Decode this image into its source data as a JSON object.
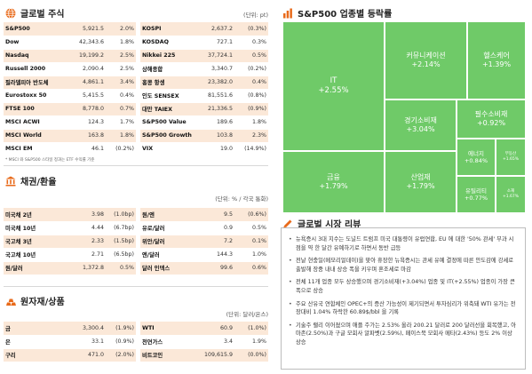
{
  "global_stocks": {
    "title": "글로벌 주식",
    "unit": "(단위: pt)",
    "rows": [
      {
        "l_name": "S&P500",
        "l_val": "5,921.5",
        "l_chg": "2.0%",
        "r_name": "KOSPI",
        "r_val": "2,637.2",
        "r_chg": "(0.3%)"
      },
      {
        "l_name": "Dow",
        "l_val": "42,343.6",
        "l_chg": "1.8%",
        "r_name": "KOSDAQ",
        "r_val": "727.1",
        "r_chg": "0.3%"
      },
      {
        "l_name": "Nasdaq",
        "l_val": "19,199.2",
        "l_chg": "2.5%",
        "r_name": "Nikkei 225",
        "r_val": "37,724.1",
        "r_chg": "0.5%"
      },
      {
        "l_name": "Russell 2000",
        "l_val": "2,090.4",
        "l_chg": "2.5%",
        "r_name": "상해종합",
        "r_val": "3,340.7",
        "r_chg": "(0.2%)"
      },
      {
        "l_name": "필라델피아 반도체",
        "l_val": "4,861.1",
        "l_chg": "3.4%",
        "r_name": "홍콩 항셍",
        "r_val": "23,382.0",
        "r_chg": "0.4%"
      },
      {
        "l_name": "Eurostoxx 50",
        "l_val": "5,415.5",
        "l_chg": "0.4%",
        "r_name": "인도 SENSEX",
        "r_val": "81,551.6",
        "r_chg": "(0.8%)"
      },
      {
        "l_name": "FTSE 100",
        "l_val": "8,778.0",
        "l_chg": "0.7%",
        "r_name": "대만 TAIEX",
        "r_val": "21,336.5",
        "r_chg": "(0.9%)"
      },
      {
        "l_name": "MSCI ACWI",
        "l_val": "124.3",
        "l_chg": "1.7%",
        "r_name": "S&P500 Value",
        "r_val": "189.6",
        "r_chg": "1.8%"
      },
      {
        "l_name": "MSCI World",
        "l_val": "163.8",
        "l_chg": "1.8%",
        "r_name": "S&P500 Growth",
        "r_val": "103.8",
        "r_chg": "2.3%"
      },
      {
        "l_name": "MSCI EM",
        "l_val": "46.1",
        "l_chg": "(0.2%)",
        "r_name": "VIX",
        "r_val": "19.0",
        "r_chg": "(14.9%)"
      }
    ],
    "note": "* MSCI 와 S&P500 스타일 정과는 ETF 수익률 기준"
  },
  "bonds_fx": {
    "title": "채권/환율",
    "unit": "(단위: % / 각국 통화)",
    "rows": [
      {
        "l_name": "미국채 2년",
        "l_val": "3.98",
        "l_chg": "(1.0bp)",
        "r_name": "원/엔",
        "r_val": "9.5",
        "r_chg": "(0.6%)"
      },
      {
        "l_name": "미국채 10년",
        "l_val": "4.44",
        "l_chg": "(6.7bp)",
        "r_name": "유로/달러",
        "r_val": "0.9",
        "r_chg": "0.5%"
      },
      {
        "l_name": "국고채 3년",
        "l_val": "2.33",
        "l_chg": "(1.5bp)",
        "r_name": "위안/달러",
        "r_val": "7.2",
        "r_chg": "0.1%"
      },
      {
        "l_name": "국고채 10년",
        "l_val": "2.71",
        "l_chg": "(6.5bp)",
        "r_name": "엔/달러",
        "r_val": "144.3",
        "r_chg": "1.0%"
      },
      {
        "l_name": "원/달러",
        "l_val": "1,372.8",
        "l_chg": "0.5%",
        "r_name": "달러 인덱스",
        "r_val": "99.6",
        "r_chg": "0.6%"
      }
    ]
  },
  "commodities": {
    "title": "원자재/상품",
    "unit": "(단위: 달러/온스)",
    "rows": [
      {
        "l_name": "금",
        "l_val": "3,300.4",
        "l_chg": "(1.9%)",
        "r_name": "WTI",
        "r_val": "60.9",
        "r_chg": "(1.0%)"
      },
      {
        "l_name": "은",
        "l_val": "33.1",
        "l_chg": "(0.9%)",
        "r_name": "천연가스",
        "r_val": "3.4",
        "r_chg": "1.9%"
      },
      {
        "l_name": "구리",
        "l_val": "471.0",
        "l_chg": "(2.0%)",
        "r_name": "비트코인",
        "r_val": "109,615.9",
        "r_chg": "(0.0%)"
      }
    ]
  },
  "sector": {
    "title": "S&P500 업종별 등락률",
    "cells": [
      {
        "name": "IT",
        "pct": "+2.55%",
        "id": "it"
      },
      {
        "name": "커뮤니케이션",
        "pct": "+2.14%",
        "id": "comm"
      },
      {
        "name": "헬스케어",
        "pct": "+1.39%",
        "id": "health"
      },
      {
        "name": "경기소비재",
        "pct": "+3.04%",
        "id": "discretionary"
      },
      {
        "name": "필수소비재",
        "pct": "+0.92%",
        "id": "staples"
      },
      {
        "name": "금융",
        "pct": "+1.79%",
        "id": "financials"
      },
      {
        "name": "산업재",
        "pct": "+1.79%",
        "id": "industrials"
      },
      {
        "name": "에너지",
        "pct": "+0.84%",
        "id": "energy"
      },
      {
        "name": "부동산",
        "pct": "+1.65%",
        "id": "realestate"
      },
      {
        "name": "유틸리티",
        "pct": "+0.77%",
        "id": "utilities"
      },
      {
        "name": "소재",
        "pct": "+1.67%",
        "id": "materials"
      }
    ]
  },
  "review": {
    "title": "글로벌 시장 리뷰",
    "items": [
      "뉴욕증시 3대 지수는 도널드 트럼프 미국 대통령이 유럽연합, EU 에 대한 '50% 관세' 부과 시점을 약 한 달간 유예하기로 하면서 동반 급등",
      "전날 현충일(메모리얼데이)을 맞아 휴장한 뉴욕증시는 관세 유예 결정에 따른 안도감에 강세로 출발해 장중 내내 상승 폭을 키우며 혼조세로 마감",
      "전체 11개 업종 모두 상승했으며 경기소비재(+3.04%) 업종 및 IT(+2.55%) 업종이 가장 큰 폭으로 상승",
      "주요 산유국 연합체인 OPEC+의 증산 가능성이 제기되면서 투자심리가 위축돼 WTI 유가는 전장대비 1.04% 하락한 60.89$/bbl 을 기록",
      "기술주 랠리 이어졌으며 애플 주가는 2.53% 올라 200.21 달러로 200 달러선을 회복했고, 아마존(2.50%)과 구글 모회사 알파벳(2.59%), 페이스북 모회사 메타(2.43%) 등도 2% 이상 상승"
    ]
  },
  "colors": {
    "accent": "#e86a1a",
    "row_tint": "#fbe8d8",
    "treemap_green": "#6fca68"
  }
}
